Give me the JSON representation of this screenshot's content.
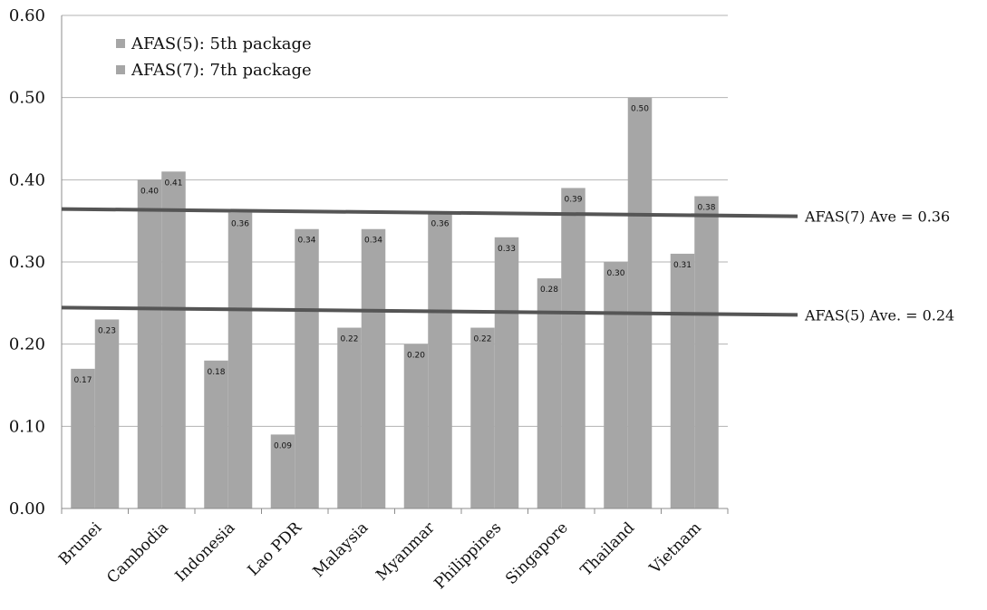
{
  "chart_data": {
    "type": "bar",
    "categories": [
      "Brunei",
      "Cambodia",
      "Indonesia",
      "Lao PDR",
      "Malaysia",
      "Myanmar",
      "Philippines",
      "Singapore",
      "Thailand",
      "Vietnam"
    ],
    "series": [
      {
        "name": "AFAS(5): 5th package",
        "values": [
          0.17,
          0.4,
          0.18,
          0.09,
          0.22,
          0.2,
          0.22,
          0.28,
          0.3,
          0.31
        ],
        "color": "#a6a6a6"
      },
      {
        "name": "AFAS(7): 7th package",
        "values": [
          0.23,
          0.41,
          0.36,
          0.34,
          0.34,
          0.36,
          0.33,
          0.39,
          0.5,
          0.38
        ],
        "color": "#a6a6a6"
      }
    ],
    "data_labels": {
      "series_0": [
        "0.17",
        "0.40",
        "0.18",
        "0.09",
        "0.22",
        "0.20",
        "0.22",
        "0.28",
        "0.30",
        "0.31"
      ],
      "series_1": [
        "0.23",
        "0.41",
        "0.36",
        "0.34",
        "0.34",
        "0.36",
        "0.33",
        "0.39",
        "0.50",
        "0.38"
      ]
    },
    "ylim": [
      0,
      0.6
    ],
    "yticks": [
      "0.00",
      "0.10",
      "0.20",
      "0.30",
      "0.40",
      "0.50",
      "0.60"
    ],
    "grid": true,
    "legend_position": "top-left",
    "reference_lines": [
      {
        "label": "AFAS(7) Ave = 0.36",
        "value": 0.36,
        "color": "#555555"
      },
      {
        "label": "AFAS(5) Ave. = 0.24",
        "value": 0.24,
        "color": "#555555"
      }
    ]
  }
}
